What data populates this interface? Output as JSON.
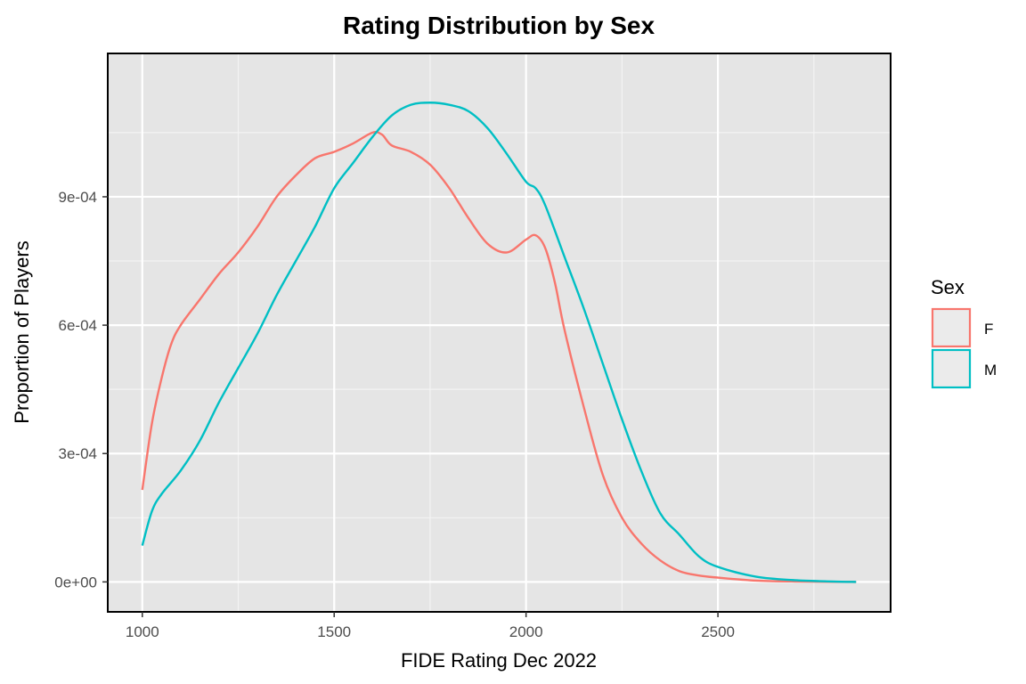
{
  "chart_data": {
    "type": "line",
    "title": "Rating Distribution by Sex",
    "xlabel": "FIDE Rating Dec 2022",
    "ylabel": "Proportion of Players",
    "xlim": [
      910,
      2950
    ],
    "ylim": [
      -7e-05,
      0.001235
    ],
    "x_ticks": [
      {
        "value": 1000,
        "label": "1000"
      },
      {
        "value": 1500,
        "label": "1500"
      },
      {
        "value": 2000,
        "label": "2000"
      },
      {
        "value": 2500,
        "label": "2500"
      }
    ],
    "x_minor": [
      1250,
      1750,
      2250,
      2750
    ],
    "y_ticks": [
      {
        "value": 0,
        "label": "0e+00"
      },
      {
        "value": 0.0003,
        "label": "3e-04"
      },
      {
        "value": 0.0006,
        "label": "6e-04"
      },
      {
        "value": 0.0009,
        "label": "9e-04"
      }
    ],
    "y_minor": [
      0.00015,
      0.00045,
      0.00075,
      0.00105
    ],
    "grid": true,
    "panel_background": "#e5e5e5",
    "legend": {
      "title": "Sex",
      "position": "right"
    },
    "series": [
      {
        "name": "F",
        "color": "#f8766d",
        "points": [
          [
            1000,
            0.000215
          ],
          [
            1025,
            0.00037
          ],
          [
            1050,
            0.000475
          ],
          [
            1075,
            0.000555
          ],
          [
            1100,
            0.0006
          ],
          [
            1150,
            0.00066
          ],
          [
            1200,
            0.00072
          ],
          [
            1250,
            0.00077
          ],
          [
            1300,
            0.00083
          ],
          [
            1350,
            0.0009
          ],
          [
            1400,
            0.00095
          ],
          [
            1450,
            0.00099
          ],
          [
            1500,
            0.001005
          ],
          [
            1550,
            0.001025
          ],
          [
            1600,
            0.00105
          ],
          [
            1625,
            0.001045
          ],
          [
            1650,
            0.00102
          ],
          [
            1700,
            0.001005
          ],
          [
            1750,
            0.000975
          ],
          [
            1800,
            0.00092
          ],
          [
            1850,
            0.00085
          ],
          [
            1900,
            0.00079
          ],
          [
            1950,
            0.00077
          ],
          [
            2000,
            0.0008
          ],
          [
            2025,
            0.00081
          ],
          [
            2050,
            0.00078
          ],
          [
            2075,
            0.0007
          ],
          [
            2100,
            0.00059
          ],
          [
            2150,
            0.00041
          ],
          [
            2200,
            0.00025
          ],
          [
            2250,
            0.00015
          ],
          [
            2300,
            9e-05
          ],
          [
            2350,
            5e-05
          ],
          [
            2400,
            2.5e-05
          ],
          [
            2450,
            1.5e-05
          ],
          [
            2500,
            1e-05
          ],
          [
            2600,
            3e-06
          ],
          [
            2700,
            1e-06
          ],
          [
            2860,
            0.0
          ]
        ]
      },
      {
        "name": "M",
        "color": "#00bfc4",
        "points": [
          [
            1000,
            8.5e-05
          ],
          [
            1025,
            0.000165
          ],
          [
            1050,
            0.000205
          ],
          [
            1100,
            0.00026
          ],
          [
            1150,
            0.00033
          ],
          [
            1200,
            0.00042
          ],
          [
            1250,
            0.0005
          ],
          [
            1300,
            0.00058
          ],
          [
            1350,
            0.00067
          ],
          [
            1400,
            0.00075
          ],
          [
            1450,
            0.00083
          ],
          [
            1500,
            0.00092
          ],
          [
            1550,
            0.00098
          ],
          [
            1600,
            0.00104
          ],
          [
            1650,
            0.00109
          ],
          [
            1700,
            0.001115
          ],
          [
            1750,
            0.00112
          ],
          [
            1800,
            0.001115
          ],
          [
            1850,
            0.0011
          ],
          [
            1900,
            0.00106
          ],
          [
            1950,
            0.001
          ],
          [
            2000,
            0.000935
          ],
          [
            2025,
            0.00092
          ],
          [
            2050,
            0.00088
          ],
          [
            2100,
            0.00076
          ],
          [
            2150,
            0.00064
          ],
          [
            2200,
            0.00051
          ],
          [
            2250,
            0.00038
          ],
          [
            2300,
            0.00026
          ],
          [
            2350,
            0.00016
          ],
          [
            2400,
            0.00011
          ],
          [
            2450,
            6e-05
          ],
          [
            2500,
            3.5e-05
          ],
          [
            2600,
            1.2e-05
          ],
          [
            2700,
            4e-06
          ],
          [
            2800,
            1e-06
          ],
          [
            2860,
            0.0
          ]
        ]
      }
    ]
  }
}
